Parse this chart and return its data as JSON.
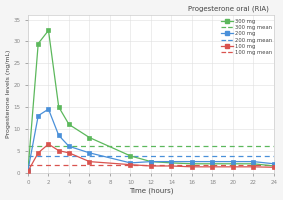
{
  "title": "Progesterone oral (RIA)",
  "xlabel": "Time (hours)",
  "ylabel": "Progesterone levels (ng/mL)",
  "time_points_main": [
    0,
    1,
    2,
    3,
    4,
    6,
    10,
    12,
    14,
    16,
    18,
    20,
    22,
    24
  ],
  "dose_300": [
    0.5,
    29.5,
    32.5,
    15.0,
    11.0,
    8.0,
    3.8,
    2.5,
    2.2,
    2.0,
    2.0,
    2.0,
    2.0,
    1.5
  ],
  "dose_200": [
    0.5,
    13.0,
    14.5,
    8.5,
    6.0,
    4.5,
    2.2,
    2.5,
    2.5,
    2.5,
    2.5,
    2.5,
    2.5,
    2.0
  ],
  "dose_100": [
    0.3,
    4.5,
    6.5,
    5.0,
    4.5,
    2.5,
    1.8,
    1.5,
    1.5,
    1.3,
    1.3,
    1.3,
    1.3,
    1.2
  ],
  "mean_300": 6.1,
  "mean_200": 3.7,
  "mean_100": 1.8,
  "color_300": "#5cb85c",
  "color_200": "#4a90d9",
  "color_100": "#d9534f",
  "ylim": [
    0,
    36
  ],
  "xlim": [
    0,
    24
  ],
  "yticks": [
    0,
    5,
    10,
    15,
    20,
    25,
    30,
    35
  ],
  "xticks": [
    0,
    2,
    4,
    6,
    8,
    10,
    12,
    14,
    16,
    18,
    20,
    22,
    24
  ],
  "bg_color": "#f5f5f5",
  "plot_bg_color": "#ffffff"
}
